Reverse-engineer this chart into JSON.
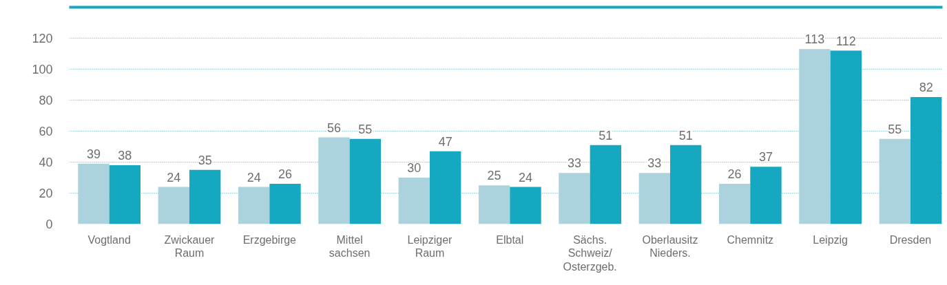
{
  "chart_data": {
    "type": "bar",
    "categories": [
      "Vogtland",
      "Zwickauer\nRaum",
      "Erzgebirge",
      "Mittel\nsachsen",
      "Leipziger\nRaum",
      "Elbtal",
      "Sächs.\nSchweiz/\nOsterzgeb.",
      "Oberlausitz\nNieders.",
      "Chemnitz",
      "Leipzig",
      "Dresden"
    ],
    "series": [
      {
        "color": "#acd3dd",
        "values": [
          39,
          24,
          24,
          56,
          30,
          25,
          33,
          33,
          26,
          113,
          55
        ]
      },
      {
        "color": "#17a8c1",
        "values": [
          38,
          35,
          26,
          55,
          47,
          24,
          51,
          51,
          37,
          112,
          82
        ]
      }
    ],
    "ylim": [
      0,
      140
    ],
    "yticks": [
      0,
      20,
      40,
      60,
      80,
      100,
      120
    ],
    "grid": "y",
    "data_labels": true
  }
}
